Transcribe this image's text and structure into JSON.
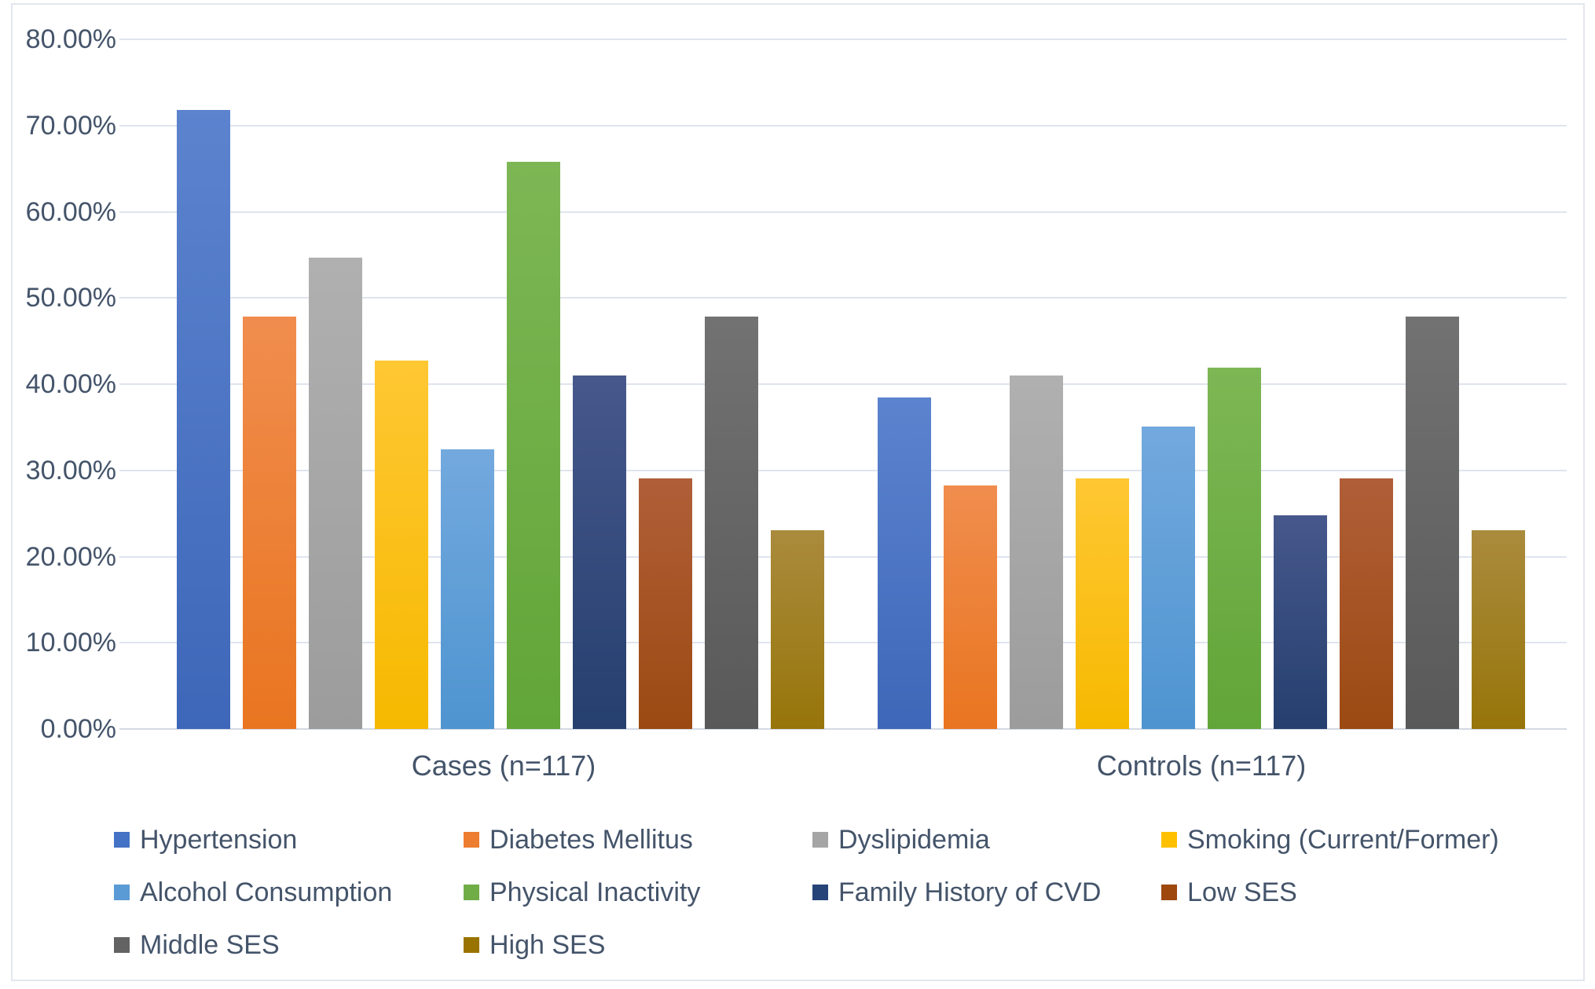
{
  "chart_data": {
    "type": "bar",
    "title": "",
    "xlabel": "",
    "ylabel": "",
    "categories": [
      "Cases (n=117)",
      "Controls (n=117)"
    ],
    "series": [
      {
        "name": "Hypertension",
        "color": "#4472C4",
        "color_top": "#5b83ce",
        "color_bottom": "#3e67b9",
        "values": [
          71.79,
          38.46
        ]
      },
      {
        "name": "Diabetes Mellitus",
        "color": "#ED7D31",
        "color_top": "#f08d4e",
        "color_bottom": "#e97520",
        "values": [
          47.86,
          28.21
        ]
      },
      {
        "name": "Dyslipidemia",
        "color": "#A5A5A5",
        "color_top": "#b0b0b0",
        "color_bottom": "#9c9c9c",
        "values": [
          54.7,
          41.03
        ]
      },
      {
        "name": "Smoking (Current/Former)",
        "color": "#FFC000",
        "color_top": "#ffc733",
        "color_bottom": "#f6b900",
        "values": [
          42.74,
          29.06
        ]
      },
      {
        "name": "Alcohol Consumption",
        "color": "#5B9BD5",
        "color_top": "#73a9de",
        "color_bottom": "#4e94d0",
        "values": [
          32.48,
          35.04
        ]
      },
      {
        "name": "Physical Inactivity",
        "color": "#70AD47",
        "color_top": "#7db755",
        "color_bottom": "#62a538",
        "values": [
          65.81,
          41.88
        ]
      },
      {
        "name": "Family History of CVD",
        "color": "#264478",
        "color_top": "#47588c",
        "color_bottom": "#253f6e",
        "values": [
          41.03,
          24.79
        ]
      },
      {
        "name": "Low SES",
        "color": "#9E480E",
        "color_top": "#b05e38",
        "color_bottom": "#9c4a12",
        "values": [
          29.06,
          29.06
        ]
      },
      {
        "name": "Middle SES",
        "color": "#636363",
        "color_top": "#727272",
        "color_bottom": "#595959",
        "values": [
          47.86,
          47.86
        ]
      },
      {
        "name": "High SES",
        "color": "#997300",
        "color_top": "#aa8b3d",
        "color_bottom": "#97750a",
        "values": [
          23.08,
          23.08
        ]
      }
    ],
    "y_ticks": [
      "0.00%",
      "10.00%",
      "20.00%",
      "30.00%",
      "40.00%",
      "50.00%",
      "60.00%",
      "70.00%",
      "80.00%"
    ],
    "ylim": [
      0,
      80
    ],
    "grid": true,
    "legend_position": "bottom",
    "text_color": "#44546A",
    "gridline_color": "#dfe4ee"
  }
}
